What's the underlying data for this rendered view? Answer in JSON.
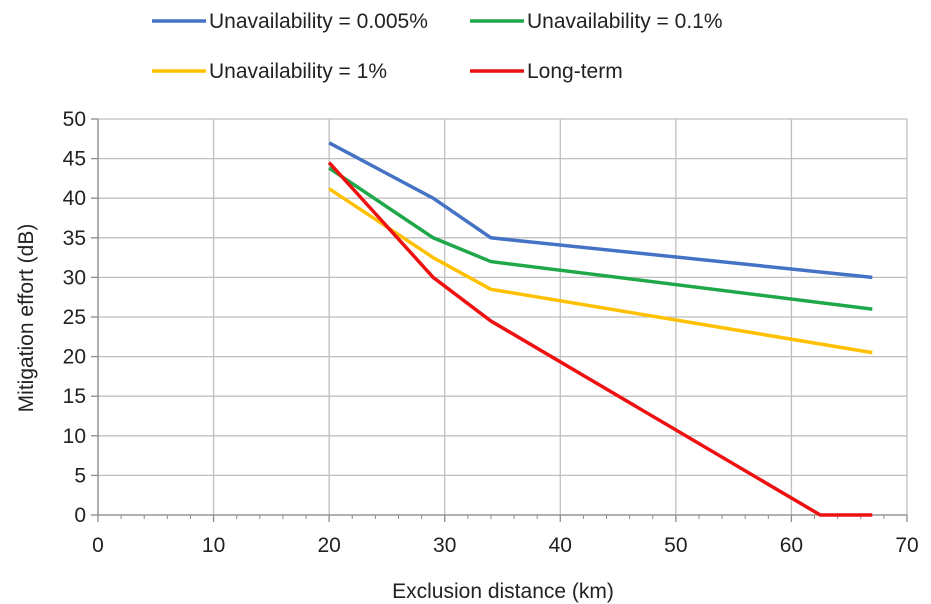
{
  "chart_data": {
    "type": "line",
    "xlabel": "Exclusion distance (km)",
    "ylabel": "Mitigation effort (dB)",
    "xlim": [
      0,
      70
    ],
    "ylim": [
      0,
      50
    ],
    "x_ticks": [
      0,
      10,
      20,
      30,
      40,
      50,
      60,
      70
    ],
    "y_ticks": [
      0,
      5,
      10,
      15,
      20,
      25,
      30,
      35,
      40,
      45,
      50
    ],
    "x_minor_step": 2,
    "grid": true,
    "legend_position": "top",
    "series": [
      {
        "name": "Unavailability = 0.005%",
        "color": "#4472c4",
        "points": [
          [
            20,
            47
          ],
          [
            29,
            40
          ],
          [
            34,
            35
          ],
          [
            67,
            30
          ]
        ]
      },
      {
        "name": "Unavailability = 0.1%",
        "color": "#1fa84a",
        "points": [
          [
            20,
            43.8
          ],
          [
            29,
            35
          ],
          [
            34,
            32
          ],
          [
            67,
            26
          ]
        ]
      },
      {
        "name": "Unavailability = 1%",
        "color": "#ffc000",
        "points": [
          [
            20,
            41.2
          ],
          [
            29,
            32.5
          ],
          [
            34,
            28.5
          ],
          [
            67,
            20.5
          ]
        ]
      },
      {
        "name": "Long-term",
        "color": "#ee1111",
        "points": [
          [
            20,
            44.5
          ],
          [
            29,
            30
          ],
          [
            34,
            24.5
          ],
          [
            62.5,
            0
          ],
          [
            67,
            0
          ]
        ]
      }
    ]
  }
}
